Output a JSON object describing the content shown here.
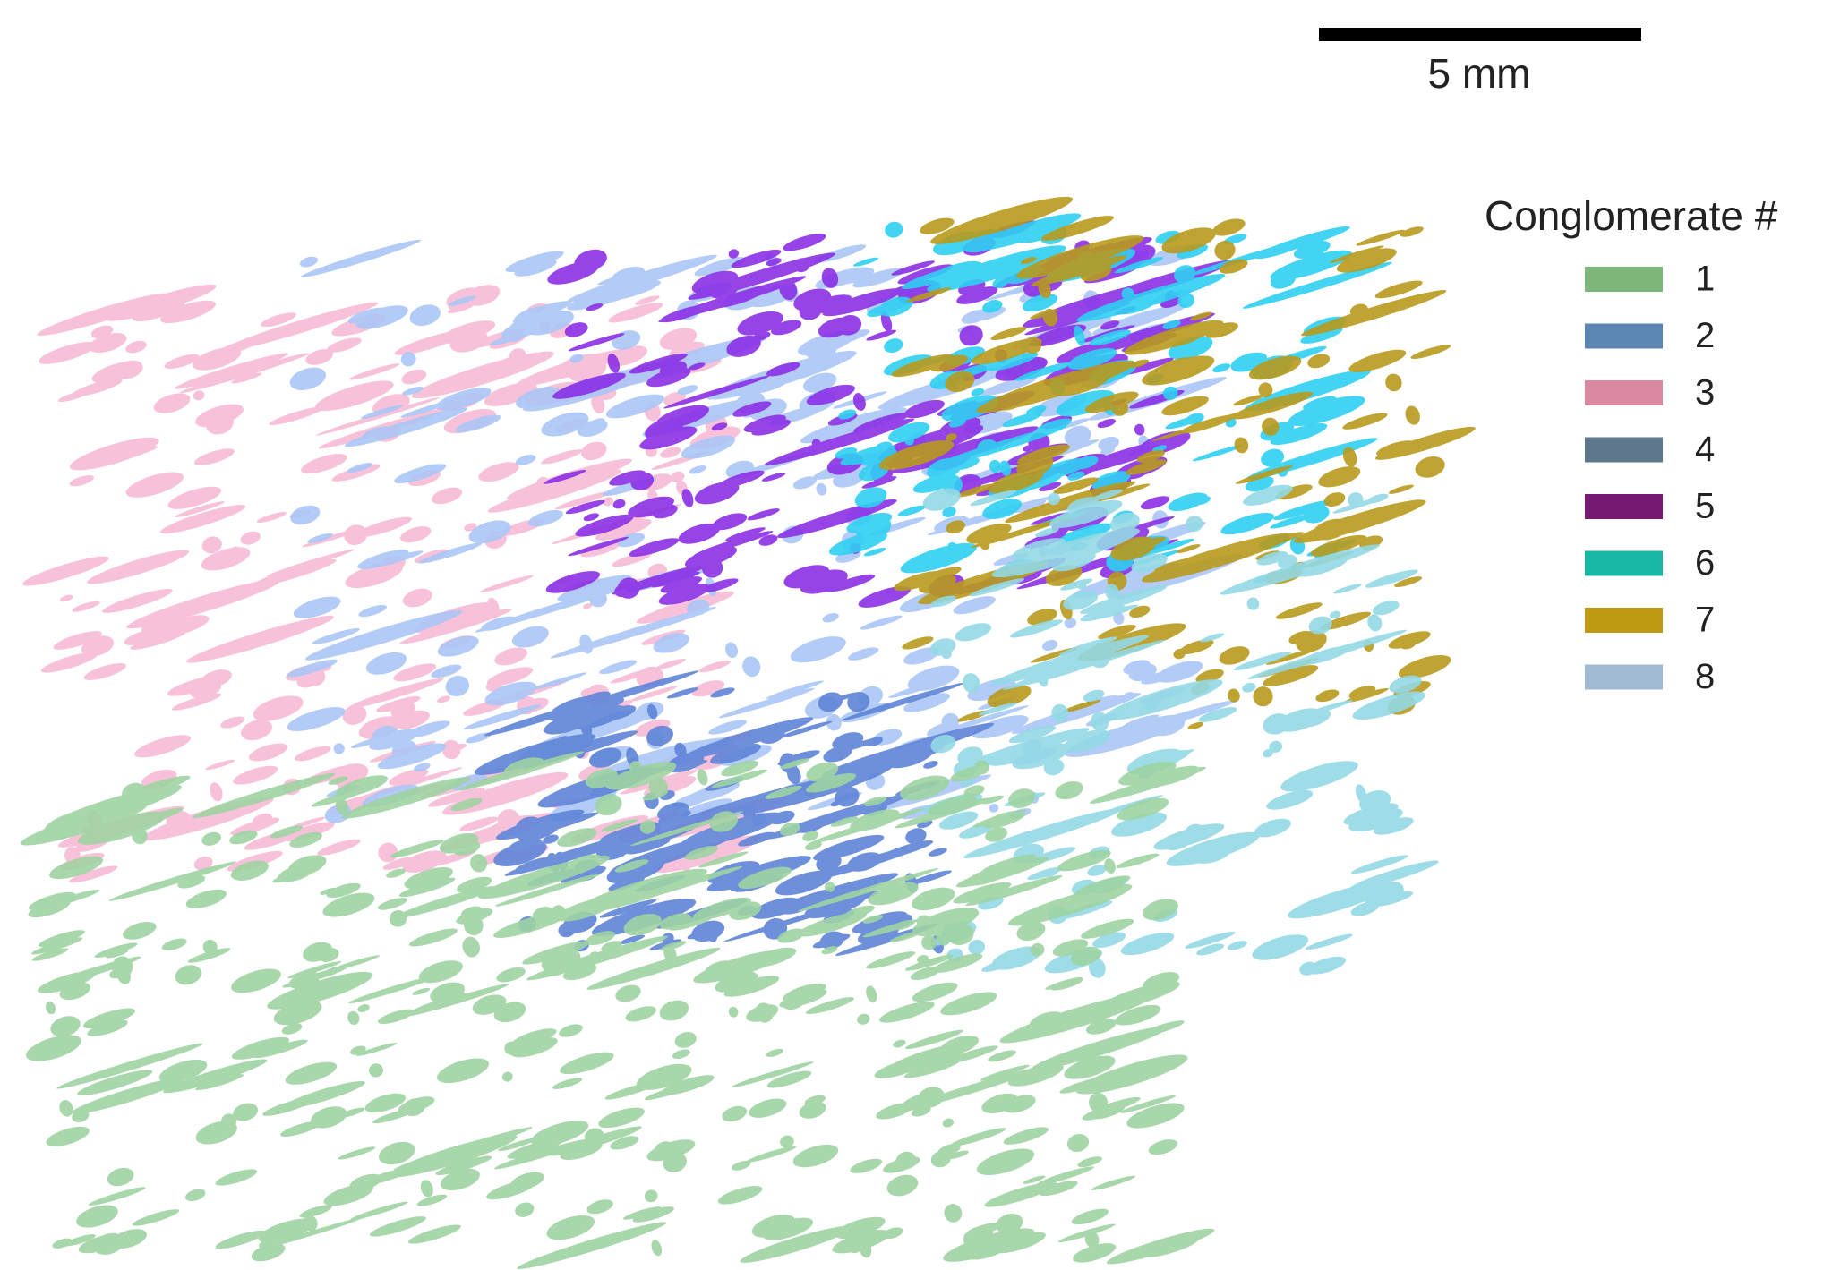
{
  "scale_bar": {
    "label": "5 mm"
  },
  "legend": {
    "title": "Conglomerate #",
    "items": [
      {
        "label": "1",
        "color": "#7db57a"
      },
      {
        "label": "2",
        "color": "#5b86b3"
      },
      {
        "label": "3",
        "color": "#d98aa0"
      },
      {
        "label": "4",
        "color": "#5f778c"
      },
      {
        "label": "5",
        "color": "#761a74"
      },
      {
        "label": "6",
        "color": "#17b8a6"
      },
      {
        "label": "7",
        "color": "#bd9a12"
      },
      {
        "label": "8",
        "color": "#9fbad2"
      }
    ]
  }
}
